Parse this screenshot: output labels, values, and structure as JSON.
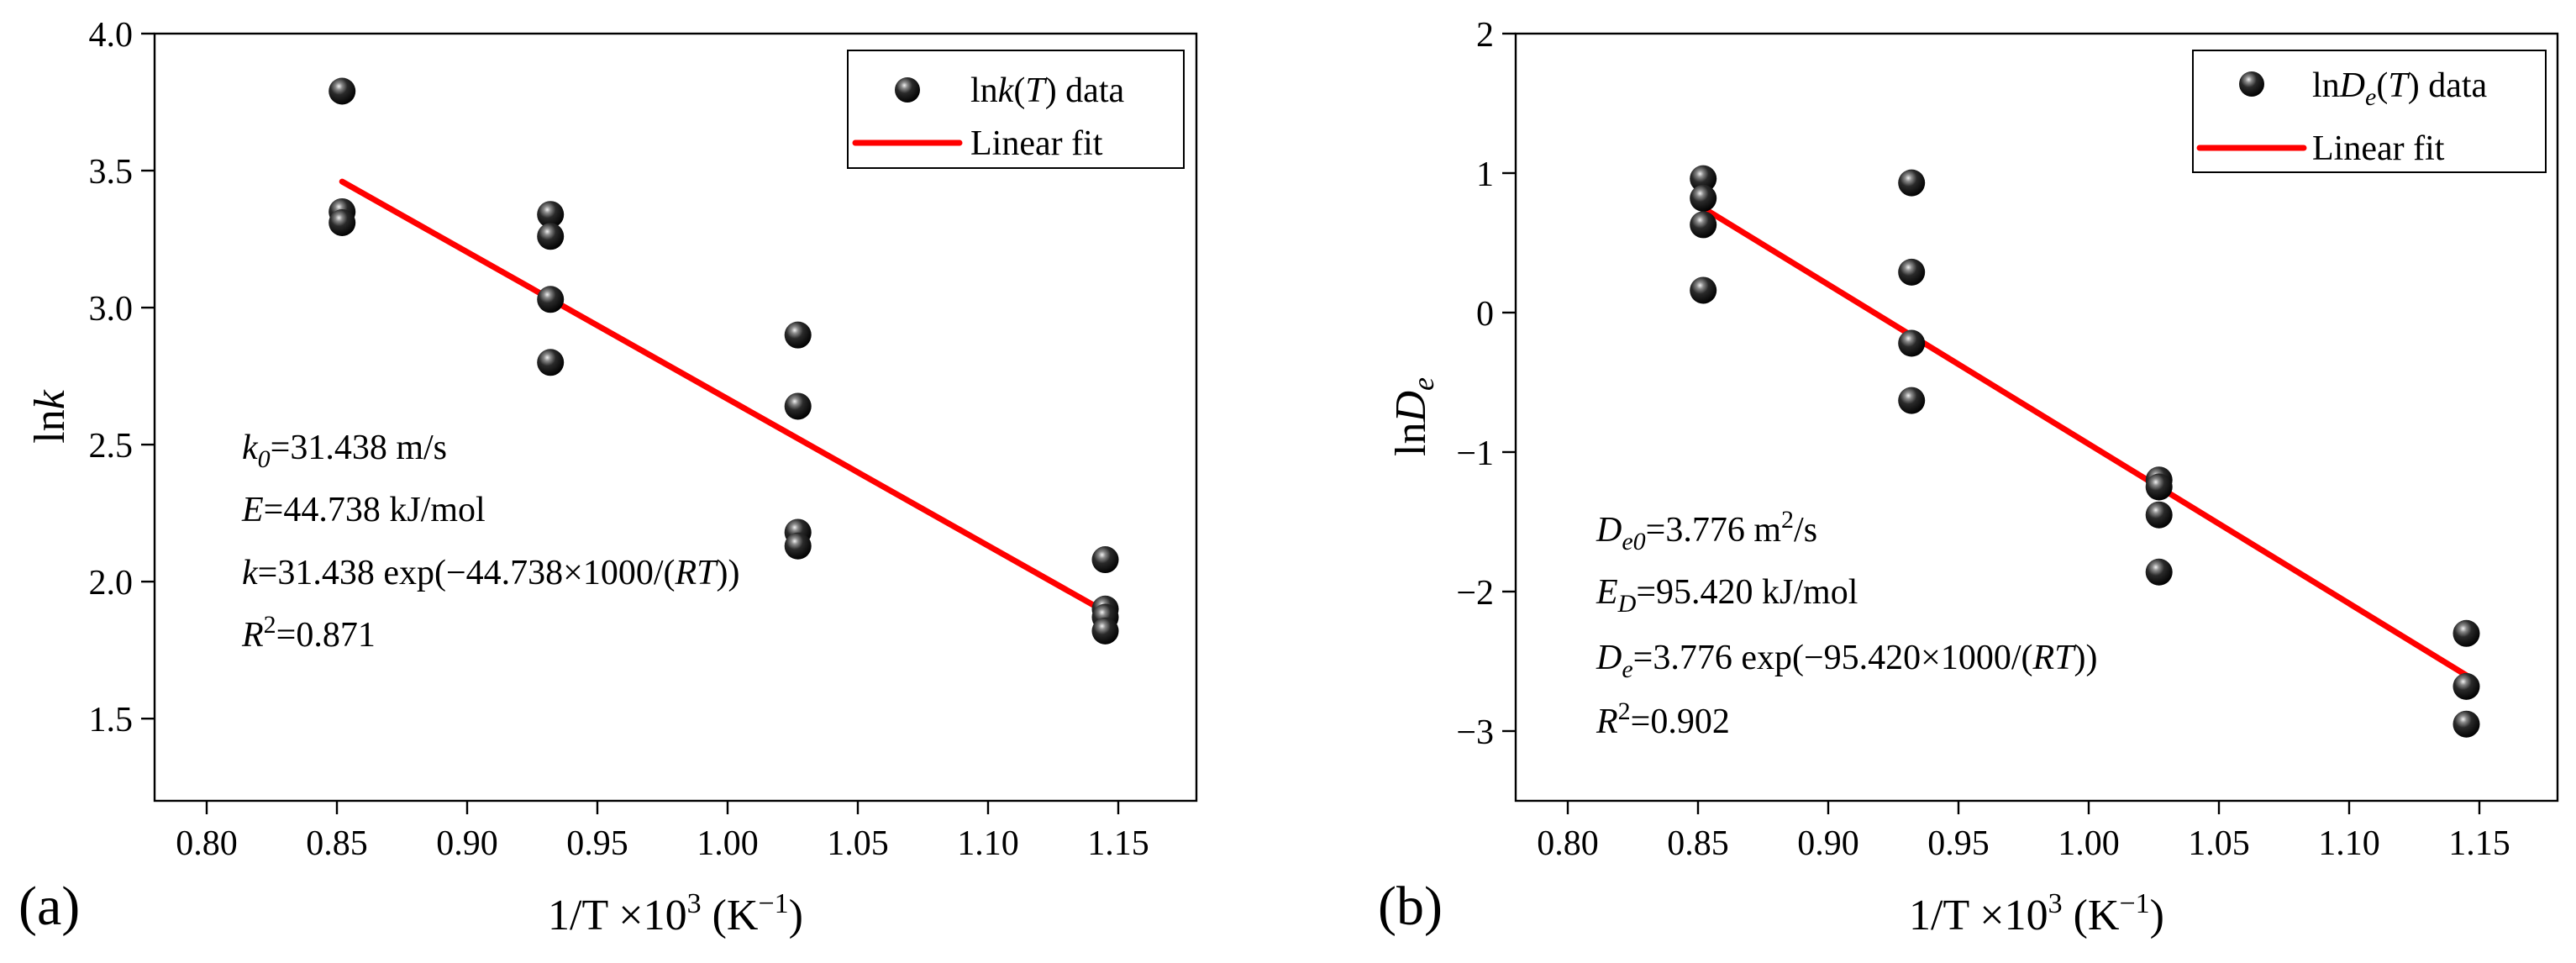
{
  "chart_data": [
    {
      "type": "scatter",
      "panel_label": "(a)",
      "xlabel": "1/T ×10³ (K⁻¹)",
      "ylabel": "lnk",
      "xlim": [
        0.78,
        1.18
      ],
      "ylim": [
        1.2,
        4.0
      ],
      "xticks": [
        0.8,
        0.85,
        0.9,
        0.95,
        1.0,
        1.05,
        1.1,
        1.15
      ],
      "xtick_labels": [
        "0.80",
        "0.85",
        "0.90",
        "0.95",
        "1.00",
        "1.05",
        "1.10",
        "1.15"
      ],
      "yticks": [
        1.5,
        2.0,
        2.5,
        3.0,
        3.5,
        4.0
      ],
      "ytick_labels": [
        "1.5",
        "2.0",
        "2.5",
        "3.0",
        "3.5",
        "4.0"
      ],
      "legend": {
        "position": "top-right",
        "entries": [
          "lnk(T) data",
          "Linear fit"
        ]
      },
      "series": [
        {
          "name": "lnk(T) data",
          "kind": "scatter",
          "x": [
            0.852,
            0.852,
            0.852,
            0.932,
            0.932,
            0.932,
            0.932,
            1.027,
            1.027,
            1.027,
            1.027,
            1.145,
            1.145,
            1.145,
            1.145
          ],
          "y": [
            3.79,
            3.35,
            3.31,
            3.34,
            3.26,
            3.03,
            2.8,
            2.9,
            2.64,
            2.18,
            2.13,
            2.08,
            1.9,
            1.87,
            1.82
          ]
        },
        {
          "name": "Linear fit",
          "kind": "line",
          "color": "#ff0000",
          "x": [
            0.852,
            1.145
          ],
          "y": [
            3.46,
            1.89
          ]
        }
      ],
      "annotations": [
        "k0=31.438 m/s",
        "E=44.738 kJ/mol",
        "k=31.438 exp(−44.738×1000/(RT))",
        "R2=0.871"
      ]
    },
    {
      "type": "scatter",
      "panel_label": "(b)",
      "xlabel": "1/T ×10³ (K⁻¹)",
      "ylabel": "lnDe",
      "xlim": [
        0.78,
        1.18
      ],
      "ylim": [
        -3.5,
        2.0
      ],
      "xticks": [
        0.8,
        0.85,
        0.9,
        0.95,
        1.0,
        1.05,
        1.1,
        1.15
      ],
      "xtick_labels": [
        "0.80",
        "0.85",
        "0.90",
        "0.95",
        "1.00",
        "1.05",
        "1.10",
        "1.15"
      ],
      "yticks": [
        -3,
        -2,
        -1,
        0,
        1,
        2
      ],
      "ytick_labels": [
        "−3",
        "−2",
        "−1",
        "0",
        "1",
        "2"
      ],
      "legend": {
        "position": "top-right",
        "entries": [
          "lnDe(T) data",
          "Linear fit"
        ]
      },
      "series": [
        {
          "name": "lnDe(T) data",
          "kind": "scatter",
          "x": [
            0.852,
            0.852,
            0.852,
            0.852,
            0.932,
            0.932,
            0.932,
            0.932,
            1.027,
            1.027,
            1.027,
            1.027,
            1.145,
            1.145,
            1.145
          ],
          "y": [
            0.96,
            0.82,
            0.63,
            0.16,
            0.93,
            0.29,
            -0.22,
            -0.63,
            -1.2,
            -1.25,
            -1.45,
            -1.86,
            -2.3,
            -2.68,
            -2.95
          ]
        },
        {
          "name": "Linear fit",
          "kind": "line",
          "color": "#ff0000",
          "x": [
            0.852,
            1.145
          ],
          "y": [
            0.75,
            -2.6
          ]
        }
      ],
      "annotations": [
        "De0=3.776 m2/s",
        "ED=95.420 kJ/mol",
        "De=3.776 exp(−95.420×1000/(RT))",
        "R2=0.902"
      ]
    }
  ],
  "labels": {
    "panel_a": "(a)",
    "panel_b": "(b)",
    "x_title": {
      "main": "1/T ×10",
      "sup3": "3",
      "open": " (K",
      "supm1": "−1",
      "close": ")"
    },
    "a": {
      "ylabel": {
        "pre": "ln",
        "k": "k"
      },
      "legend_data": {
        "pre": "ln",
        "k": "k",
        "paren_open": "(",
        "T": "T",
        "tail": ") data"
      },
      "legend_fit": "Linear fit",
      "k0": {
        "k": "k",
        "sub": "0",
        "val": "=31.438 m/s"
      },
      "E": {
        "E": "E",
        "val": "=44.738 kJ/mol"
      },
      "eq": {
        "k": "k",
        "mid": "=31.438 exp(−44.738×1000/(",
        "RT": "RT",
        "end": "))"
      },
      "r2": {
        "R": "R",
        "sup": "2",
        "val": "=0.871"
      }
    },
    "b": {
      "ylabel": {
        "pre": "ln",
        "D": "D",
        "sub": "e"
      },
      "legend_data": {
        "pre": "ln",
        "D": "D",
        "sub": "e",
        "paren_open": "(",
        "T": "T",
        "tail": ") data"
      },
      "legend_fit": "Linear fit",
      "De0": {
        "D": "D",
        "sub": "e0",
        "val": "=3.776 m",
        "sup": "2",
        "tail": "/s"
      },
      "ED": {
        "E": "E",
        "sub": "D",
        "val": "=95.420 kJ/mol"
      },
      "eq": {
        "D": "D",
        "sub": "e",
        "mid": "=3.776 exp(−95.420×1000/(",
        "RT": "RT",
        "end": "))"
      },
      "r2": {
        "R": "R",
        "sup": "2",
        "val": "=0.902"
      }
    }
  },
  "colors": {
    "fit": "#ff0000",
    "marker": "#111111",
    "axis": "#000000"
  }
}
